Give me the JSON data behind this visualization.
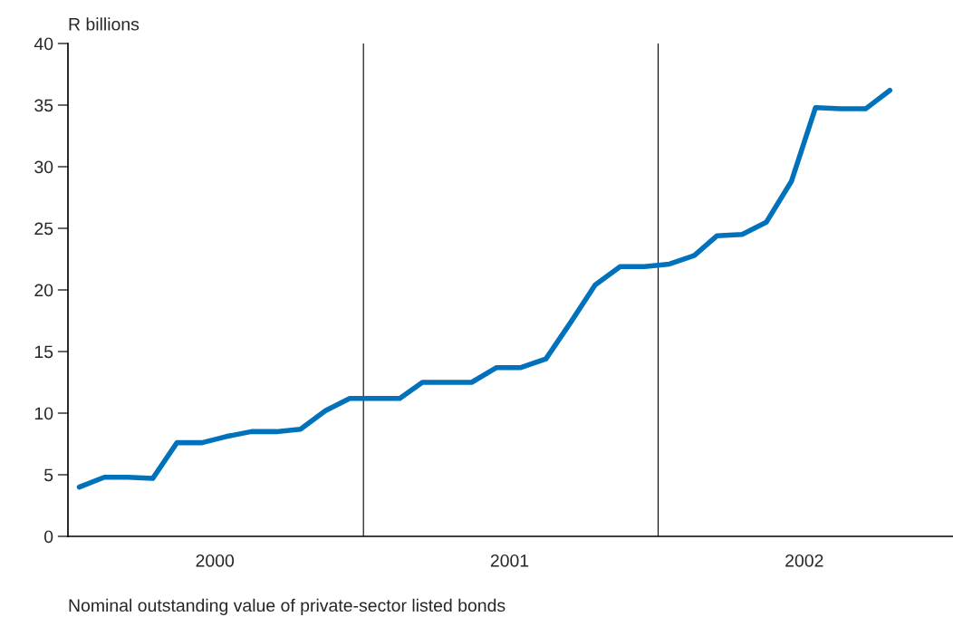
{
  "chart_data": {
    "type": "line",
    "ylabel": "R billions",
    "x": [
      "2000-01-15",
      "2000-02-15",
      "2000-03-15",
      "2000-04-15",
      "2000-05-15",
      "2000-06-15",
      "2000-07-15",
      "2000-08-15",
      "2000-09-15",
      "2000-10-15",
      "2000-11-15",
      "2000-12-15",
      "2001-01-15",
      "2001-02-15",
      "2001-03-15",
      "2001-04-15",
      "2001-05-15",
      "2001-06-15",
      "2001-07-15",
      "2001-08-15",
      "2001-09-15",
      "2001-10-15",
      "2001-11-15",
      "2001-12-15",
      "2002-01-15",
      "2002-02-15",
      "2002-03-15",
      "2002-04-15",
      "2002-05-15",
      "2002-06-15",
      "2002-07-15",
      "2002-08-15",
      "2002-09-15",
      "2002-10-15"
    ],
    "series": [
      {
        "color": "#0072bc",
        "values": [
          4.0,
          4.8,
          4.8,
          4.7,
          7.6,
          7.6,
          8.1,
          8.5,
          8.5,
          8.7,
          10.2,
          11.2,
          11.2,
          11.2,
          12.5,
          12.5,
          12.5,
          13.7,
          13.7,
          14.4,
          17.4,
          20.4,
          21.9,
          21.9,
          22.1,
          22.8,
          24.4,
          24.5,
          25.5,
          28.8,
          34.8,
          34.7,
          34.7,
          36.2
        ]
      }
    ],
    "xlim": [
      "2000-01-01",
      "2003-01-01"
    ],
    "xticks": [
      {
        "value": "2000-07-01",
        "label": "2000"
      },
      {
        "value": "2001-07-01",
        "label": "2001"
      },
      {
        "value": "2002-07-01",
        "label": "2002"
      }
    ],
    "ylim": [
      0,
      40
    ],
    "yticks": [
      0,
      5,
      10,
      15,
      20,
      25,
      30,
      35,
      40
    ],
    "ref_lines": [
      {
        "axis": "x",
        "value": "2001-01-01",
        "color": "#000000"
      },
      {
        "axis": "x",
        "value": "2002-01-01",
        "color": "#000000"
      }
    ],
    "annotations": [
      "Nominal outstanding value of private-sector listed bonds"
    ],
    "grid": false,
    "marker": "none",
    "line_style": "solid"
  }
}
